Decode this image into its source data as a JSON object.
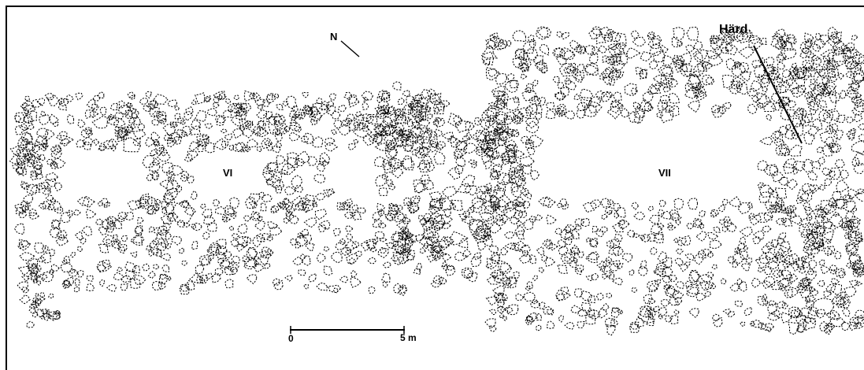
{
  "labels": {
    "hearth": "Härd",
    "north": "N",
    "house_6": "VI",
    "house_7": "VII"
  },
  "scale_bar": {
    "start": "0",
    "end": "5 m"
  }
}
